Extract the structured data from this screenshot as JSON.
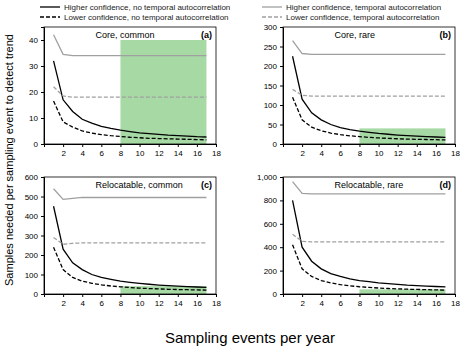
{
  "x_label": "Sampling events per year",
  "y_label": "Samples needed per sampling event to detect trend",
  "chart_data": [
    {
      "type": "line",
      "title": "Core, common",
      "panel": "(a)",
      "x": [
        1,
        2,
        3,
        4,
        5,
        6,
        7,
        8,
        9,
        10,
        11,
        12,
        13,
        14,
        15,
        16,
        17
      ],
      "xlim": [
        0,
        18
      ],
      "xticks": [
        2,
        4,
        6,
        8,
        10,
        12,
        14,
        16,
        18
      ],
      "ylim": [
        0,
        45
      ],
      "yticks": [
        0,
        10,
        20,
        30,
        40
      ],
      "shaded_region": {
        "x": [
          8,
          17
        ],
        "y": [
          0,
          40
        ],
        "color": "#a6d9a4"
      },
      "series": [
        {
          "name": "Higher confidence, no temporal autocorrelation",
          "color": "#000000",
          "line_style": "solid",
          "values": [
            32,
            17,
            12.5,
            9.5,
            8,
            6.8,
            6,
            5.3,
            4.8,
            4.3,
            4,
            3.7,
            3.4,
            3.2,
            3,
            2.8,
            2.7
          ]
        },
        {
          "name": "Lower confidence, no temporal autocorrelation",
          "color": "#000000",
          "line_style": "dashed",
          "values": [
            16.5,
            8.5,
            6.5,
            5,
            4.2,
            3.6,
            3.2,
            2.9,
            2.6,
            2.4,
            2.2,
            2.1,
            2,
            1.9,
            1.8,
            1.7,
            1.6
          ]
        },
        {
          "name": "Higher confidence, temporal autocorrelation",
          "color": "#a0a0a0",
          "line_style": "solid",
          "values": [
            42,
            34.5,
            34,
            34,
            34,
            34,
            34,
            34,
            34,
            34,
            34,
            34,
            34,
            34,
            34,
            34,
            34
          ]
        },
        {
          "name": "Lower confidence, temporal autocorrelation",
          "color": "#a0a0a0",
          "line_style": "dashed",
          "values": [
            22,
            18.5,
            18,
            18,
            18,
            18,
            18,
            18,
            18,
            18,
            18,
            18,
            18,
            18,
            18,
            18,
            18
          ]
        }
      ]
    },
    {
      "type": "line",
      "title": "Core, rare",
      "panel": "(b)",
      "x": [
        1,
        2,
        3,
        4,
        5,
        6,
        7,
        8,
        9,
        10,
        11,
        12,
        13,
        14,
        15,
        16,
        17
      ],
      "xlim": [
        0,
        18
      ],
      "xticks": [
        2,
        4,
        6,
        8,
        10,
        12,
        14,
        16,
        18
      ],
      "ylim": [
        0,
        300
      ],
      "yticks": [
        0,
        50,
        100,
        150,
        200,
        250,
        300
      ],
      "shaded_region": {
        "x": [
          8,
          17
        ],
        "y": [
          0,
          40
        ],
        "color": "#a6d9a4"
      },
      "series": [
        {
          "name": "Higher confidence, no temporal autocorrelation",
          "color": "#000000",
          "line_style": "solid",
          "values": [
            225,
            115,
            80,
            62,
            50,
            42,
            37,
            33,
            30,
            27,
            25,
            23,
            21.5,
            20,
            19,
            18,
            17
          ]
        },
        {
          "name": "Lower confidence, no temporal autocorrelation",
          "color": "#000000",
          "line_style": "dashed",
          "values": [
            120,
            62,
            43,
            34,
            28,
            24,
            21,
            19,
            17,
            15.5,
            14.5,
            13.5,
            12.5,
            12,
            11.5,
            11,
            10.5
          ]
        },
        {
          "name": "Higher confidence, temporal autocorrelation",
          "color": "#a0a0a0",
          "line_style": "solid",
          "values": [
            265,
            232,
            230,
            230,
            230,
            230,
            230,
            230,
            230,
            230,
            230,
            230,
            230,
            230,
            230,
            230,
            230
          ]
        },
        {
          "name": "Lower confidence, temporal autocorrelation",
          "color": "#a0a0a0",
          "line_style": "dashed",
          "values": [
            140,
            125,
            123,
            123,
            123,
            123,
            123,
            123,
            123,
            123,
            123,
            123,
            123,
            123,
            123,
            123,
            123
          ]
        }
      ]
    },
    {
      "type": "line",
      "title": "Relocatable, common",
      "panel": "(c)",
      "x": [
        1,
        2,
        3,
        4,
        5,
        6,
        7,
        8,
        9,
        10,
        11,
        12,
        13,
        14,
        15,
        16,
        17
      ],
      "xlim": [
        0,
        18
      ],
      "xticks": [
        2,
        4,
        6,
        8,
        10,
        12,
        14,
        16,
        18
      ],
      "ylim": [
        0,
        600
      ],
      "yticks": [
        0,
        100,
        200,
        300,
        400,
        500,
        600
      ],
      "shaded_region": {
        "x": [
          8,
          17
        ],
        "y": [
          0,
          40
        ],
        "color": "#a6d9a4"
      },
      "series": [
        {
          "name": "Higher confidence, no temporal autocorrelation",
          "color": "#000000",
          "line_style": "solid",
          "values": [
            450,
            230,
            160,
            125,
            100,
            85,
            75,
            66,
            60,
            55,
            50,
            46,
            43,
            40,
            38,
            36,
            34
          ]
        },
        {
          "name": "Lower confidence, no temporal autocorrelation",
          "color": "#000000",
          "line_style": "dashed",
          "values": [
            240,
            125,
            85,
            66,
            55,
            47,
            41,
            37,
            33,
            30,
            28,
            26,
            24,
            23,
            22,
            21,
            20
          ]
        },
        {
          "name": "Higher confidence, temporal autocorrelation",
          "color": "#a0a0a0",
          "line_style": "solid",
          "values": [
            540,
            485,
            490,
            495,
            495,
            495,
            495,
            495,
            495,
            495,
            495,
            495,
            495,
            495,
            495,
            495,
            495
          ]
        },
        {
          "name": "Lower confidence, temporal autocorrelation",
          "color": "#a0a0a0",
          "line_style": "dashed",
          "values": [
            290,
            255,
            260,
            262,
            262,
            262,
            262,
            262,
            262,
            262,
            262,
            262,
            262,
            262,
            262,
            262,
            262
          ]
        }
      ]
    },
    {
      "type": "line",
      "title": "Relocatable, rare",
      "panel": "(d)",
      "x": [
        1,
        2,
        3,
        4,
        5,
        6,
        7,
        8,
        9,
        10,
        11,
        12,
        13,
        14,
        15,
        16,
        17
      ],
      "xlim": [
        0,
        18
      ],
      "xticks": [
        2,
        4,
        6,
        8,
        10,
        12,
        14,
        16,
        18
      ],
      "ylim": [
        0,
        1000
      ],
      "yticks": [
        0,
        200,
        400,
        600,
        800,
        {
          "value": 1000,
          "label": "1,000"
        }
      ],
      "shaded_region": {
        "x": [
          8,
          17
        ],
        "y": [
          0,
          40
        ],
        "color": "#a6d9a4"
      },
      "series": [
        {
          "name": "Higher confidence, no temporal autocorrelation",
          "color": "#000000",
          "line_style": "solid",
          "values": [
            800,
            400,
            280,
            215,
            175,
            150,
            130,
            115,
            105,
            95,
            88,
            82,
            76,
            72,
            68,
            64,
            61
          ]
        },
        {
          "name": "Lower confidence, no temporal autocorrelation",
          "color": "#000000",
          "line_style": "dashed",
          "values": [
            420,
            215,
            150,
            115,
            95,
            80,
            70,
            62,
            56,
            51,
            47,
            44,
            41,
            39,
            37,
            35,
            33
          ]
        },
        {
          "name": "Higher confidence, temporal autocorrelation",
          "color": "#a0a0a0",
          "line_style": "solid",
          "values": [
            960,
            860,
            855,
            855,
            855,
            855,
            855,
            855,
            855,
            855,
            855,
            855,
            855,
            855,
            855,
            855,
            855
          ]
        },
        {
          "name": "Lower confidence, temporal autocorrelation",
          "color": "#a0a0a0",
          "line_style": "dashed",
          "values": [
            510,
            450,
            445,
            445,
            445,
            445,
            445,
            445,
            445,
            445,
            445,
            445,
            445,
            445,
            445,
            445,
            445
          ]
        }
      ]
    }
  ]
}
